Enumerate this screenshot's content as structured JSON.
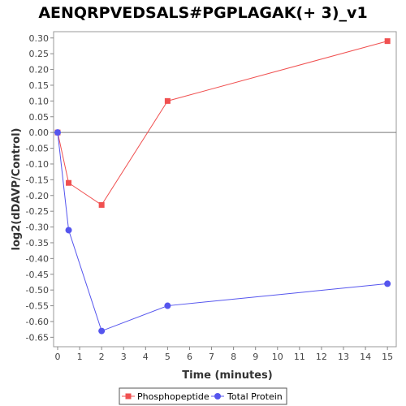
{
  "chart_data": {
    "type": "line",
    "title": "AENQRPVEDSALS#PGPLAGAK(+ 3)_v1",
    "xlabel": "Time (minutes)",
    "ylabel": "log2(dDAVP/Control)",
    "xlim": [
      0,
      15.4
    ],
    "ylim": [
      -0.68,
      0.32
    ],
    "x_ticks": [
      0,
      1,
      2,
      3,
      4,
      5,
      6,
      7,
      8,
      9,
      10,
      11,
      12,
      13,
      14,
      15
    ],
    "y_ticks": [
      -0.65,
      -0.6,
      -0.55,
      -0.5,
      -0.45,
      -0.4,
      -0.35,
      -0.3,
      -0.25,
      -0.2,
      -0.15,
      -0.1,
      -0.05,
      0.0,
      0.05,
      0.1,
      0.15,
      0.2,
      0.25,
      0.3
    ],
    "grid": false,
    "legend_position": "bottom",
    "reference_line_y": 0,
    "series": [
      {
        "name": "Phosphopeptide",
        "color": "#f05050",
        "marker": "square",
        "x": [
          0,
          0.5,
          2,
          5,
          15
        ],
        "y": [
          0.0,
          -0.16,
          -0.23,
          0.1,
          0.29
        ]
      },
      {
        "name": "Total Protein",
        "color": "#5555ee",
        "marker": "circle",
        "x": [
          0,
          0.5,
          2,
          5,
          15
        ],
        "y": [
          0.0,
          -0.31,
          -0.63,
          -0.55,
          -0.48
        ]
      }
    ]
  }
}
